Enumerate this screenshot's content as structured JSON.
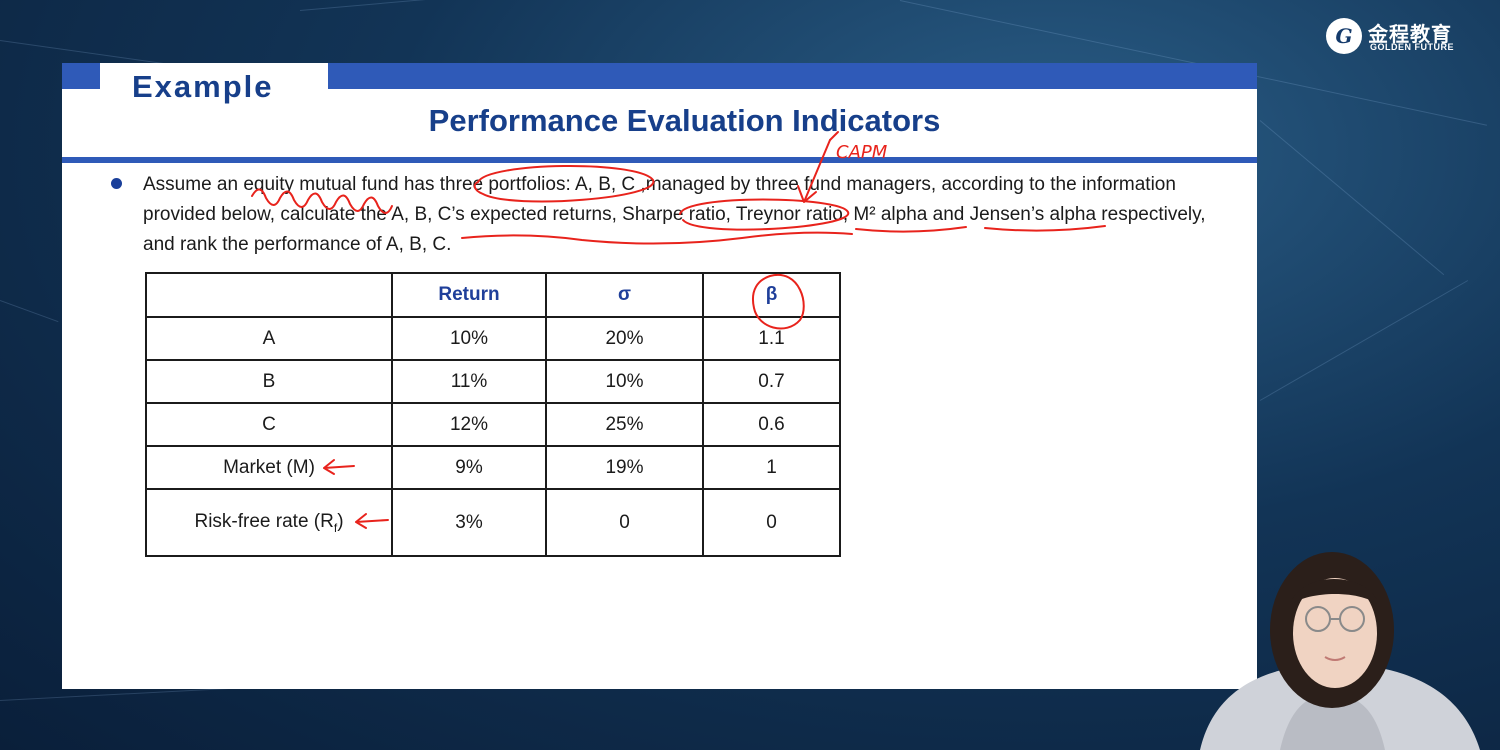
{
  "logo": {
    "name_cn": "金程教育",
    "name_en": "GOLDEN FUTURE",
    "mark": "G"
  },
  "slide": {
    "tab_label": "Example",
    "title": "Performance Evaluation Indicators",
    "bullet_text": "Assume an equity mutual fund has three portfolios: A, B, C ,managed by three fund managers, according to the information provided below, calculate the A, B, C’s expected returns, Sharpe ratio, Treynor ratio, M² alpha and Jensen’s alpha respectively,  and rank the performance of A, B, C.",
    "table": {
      "headers": [
        "",
        "Return",
        "σ",
        "β"
      ],
      "rows": [
        [
          "A",
          "10%",
          "20%",
          "1.1"
        ],
        [
          "B",
          "11%",
          "10%",
          "0.7"
        ],
        [
          "C",
          "12%",
          "25%",
          "0.6"
        ],
        [
          "Market (M)",
          "9%",
          "19%",
          "1"
        ]
      ],
      "last_row": {
        "label_main": "Risk-free rate (R",
        "label_sub": "f",
        "label_end": ")",
        "values": [
          "3%",
          "0",
          "0"
        ]
      }
    }
  },
  "annotation": {
    "handwritten_note": "CAPM",
    "color": "#e8231c"
  },
  "colors": {
    "accent_blue": "#2f5ab8",
    "title_blue": "#173f8a"
  }
}
